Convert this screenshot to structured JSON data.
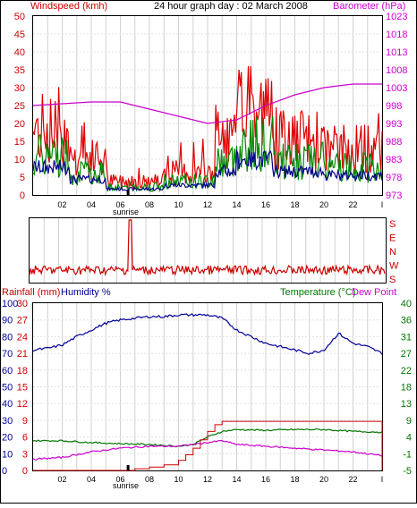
{
  "labels": {
    "windspeed": "Windspeed (kmh)",
    "title": "24 hour graph day : 02 March 2008",
    "barometer": "Barometer (hPa)",
    "rainfall": "Rainfall (mm)",
    "humidity": "Humidity %",
    "temperature": "Temperature (°C)",
    "dewpoint": "Dew Point",
    "sunrise_top": "sunrise",
    "sunrise_bottom": "sunrise"
  },
  "colors": {
    "wind_gust": "#dd0000",
    "wind_avg": "#008800",
    "wind_dir_avg": "#000088",
    "barometer": "#cc00cc",
    "direction": "#cc0000",
    "humidity": "#000099",
    "rain": "#cc0000",
    "temperature": "#007700",
    "dewpoint": "#cc00cc",
    "sunrise_bar": "#000000"
  },
  "chart_data": [
    {
      "type": "line",
      "name": "wind-barometer",
      "x_ticks": [
        "02",
        "04",
        "06",
        "08",
        "10",
        "12",
        "14",
        "16",
        "18",
        "20",
        "22",
        "I"
      ],
      "left_ticks": [
        "0",
        "5",
        "10",
        "15",
        "20",
        "25",
        "30",
        "35",
        "40",
        "45",
        "50"
      ],
      "right_ticks": [
        "973",
        "978",
        "983",
        "988",
        "993",
        "998",
        "1003",
        "1008",
        "1013",
        "1018",
        "1023"
      ],
      "ylim_left": [
        0,
        50
      ],
      "ylim_right": [
        973,
        1023
      ],
      "barometer": {
        "x": [
          0,
          4,
          6,
          8,
          10,
          12,
          14,
          16,
          18,
          20,
          22,
          24
        ],
        "y": [
          998,
          999,
          999,
          997,
          995,
          993,
          994,
          998,
          1001,
          1003,
          1004,
          1004
        ]
      }
    },
    {
      "type": "line",
      "name": "wind-direction",
      "right_ticks": [
        "S",
        "E",
        "N",
        "W",
        "S"
      ]
    },
    {
      "type": "line",
      "name": "rain-humidity-temperature",
      "x_ticks": [
        "02",
        "04",
        "06",
        "08",
        "10",
        "12",
        "14",
        "16",
        "18",
        "20",
        "22",
        "I"
      ],
      "humidity_ticks": [
        "0",
        "10",
        "20",
        "30",
        "40",
        "50",
        "60",
        "70",
        "80",
        "90",
        "100"
      ],
      "rain_ticks": [
        "0",
        "3",
        "6",
        "9",
        "12",
        "15",
        "18",
        "21",
        "24",
        "27",
        "30"
      ],
      "temp_ticks": [
        "-5",
        "-1",
        "4",
        "9",
        "13",
        "18",
        "22",
        "27",
        "31",
        "36",
        "40"
      ],
      "ylim_humidity": [
        0,
        100
      ],
      "ylim_temp": [
        -5,
        40
      ],
      "humidity": {
        "x": [
          0,
          1,
          2,
          3,
          4,
          5,
          6,
          7,
          8,
          9,
          10,
          11,
          12,
          13,
          14,
          15,
          16,
          17,
          18,
          19,
          20,
          21,
          22,
          23,
          24
        ],
        "y": [
          72,
          73,
          75,
          80,
          84,
          88,
          90,
          91,
          92,
          92,
          93,
          93,
          93,
          91,
          84,
          80,
          76,
          74,
          72,
          70,
          72,
          82,
          76,
          74,
          70
        ]
      },
      "temperature": {
        "x": [
          0,
          2,
          4,
          6,
          8,
          10,
          11,
          12,
          13,
          14,
          16,
          18,
          20,
          22,
          24
        ],
        "y": [
          3.0,
          3.0,
          2.5,
          2.2,
          2.0,
          1.5,
          2.0,
          4.0,
          5.5,
          6.0,
          5.8,
          6.0,
          6.0,
          5.5,
          5.3
        ]
      },
      "dewpoint": {
        "x": [
          0,
          2,
          4,
          6,
          8,
          10,
          11,
          12,
          13,
          14,
          16,
          18,
          20,
          22,
          24
        ],
        "y": [
          -2.0,
          -1.5,
          0.0,
          1.0,
          1.5,
          1.5,
          2.0,
          2.5,
          3.0,
          2.0,
          1.5,
          1.0,
          0.5,
          0.0,
          -1.0
        ]
      },
      "rainfall": {
        "x": [
          0,
          6,
          7,
          8,
          9,
          10,
          10.5,
          11,
          11.5,
          12,
          12.5,
          13,
          24
        ],
        "y": [
          0,
          0,
          0.3,
          0.6,
          1.0,
          1.8,
          2.8,
          4.0,
          5.5,
          7.0,
          8.2,
          8.8,
          8.8
        ]
      }
    }
  ]
}
